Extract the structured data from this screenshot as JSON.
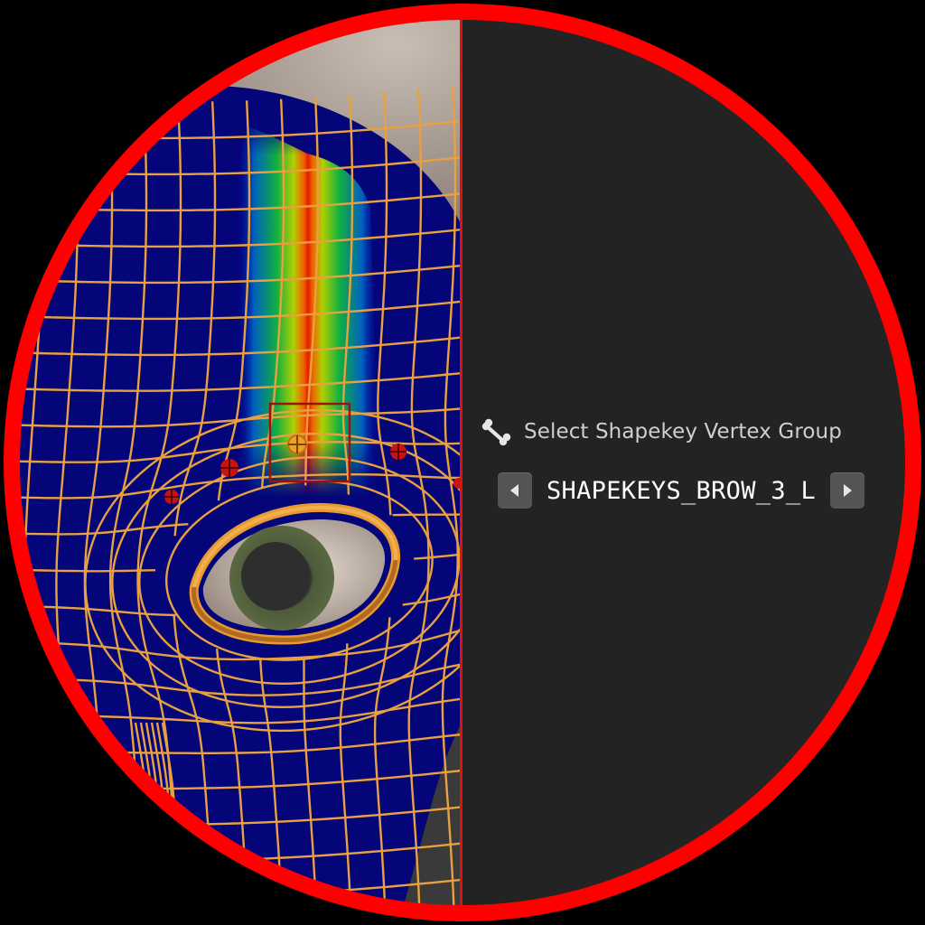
{
  "panel": {
    "label": "Select Shapekey Vertex Group",
    "label_icon": "bone-icon",
    "vertex_group": "SHAPEKEYS_BROW_3_L",
    "prev_icon": "triangle-left-icon",
    "next_icon": "triangle-right-icon"
  },
  "colors": {
    "ring": "#ff0000",
    "panel_bg": "#232323",
    "mesh_wire": "#e8a040",
    "weight_cold": "#05057a",
    "head_skin": "#bdb2a8",
    "bone_marker": "#cc1111",
    "active_marker": "#f0a020"
  }
}
